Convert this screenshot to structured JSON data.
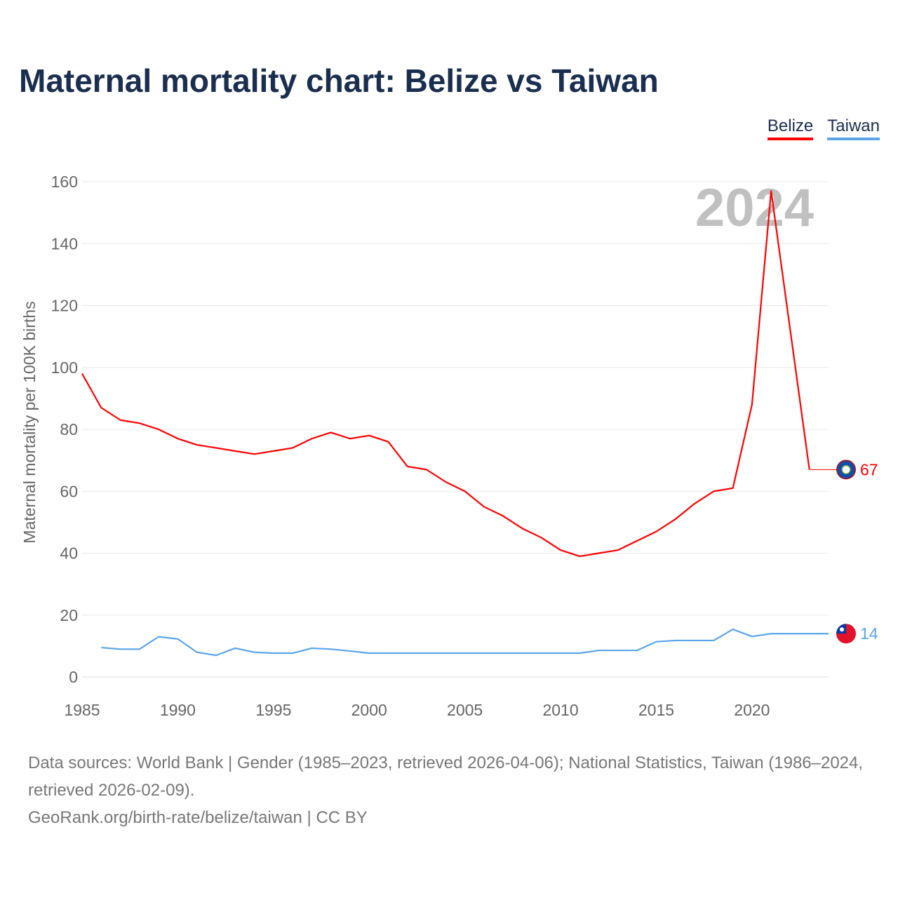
{
  "title": "Maternal mortality chart: Belize vs Taiwan",
  "year_watermark": "2024",
  "sources": {
    "line1": "Data sources: World Bank | Gender (1985–2023, retrieved 2026-04-06); National Statistics, Taiwan (1986–2024, retrieved 2026-02-09).",
    "line2": "GeoRank.org/birth-rate/belize/taiwan | CC BY"
  },
  "chart_data": {
    "type": "line",
    "title": "Maternal mortality chart: Belize vs Taiwan",
    "xlabel": "",
    "ylabel": "Maternal mortality per 100K births",
    "xlim": [
      1985,
      2024
    ],
    "ylim": [
      0,
      160
    ],
    "xticks": [
      1985,
      1990,
      1995,
      2000,
      2005,
      2010,
      2015,
      2020
    ],
    "yticks": [
      0,
      20,
      40,
      60,
      80,
      100,
      120,
      140,
      160
    ],
    "grid": true,
    "legend_position": "top-right",
    "series": [
      {
        "name": "Belize",
        "color": "#ff0000",
        "end_label": "67",
        "flag": "belize-flag",
        "x": [
          1985,
          1986,
          1987,
          1988,
          1989,
          1990,
          1991,
          1992,
          1993,
          1994,
          1995,
          1996,
          1997,
          1998,
          1999,
          2000,
          2001,
          2002,
          2003,
          2004,
          2005,
          2006,
          2007,
          2008,
          2009,
          2010,
          2011,
          2012,
          2013,
          2014,
          2015,
          2016,
          2017,
          2018,
          2019,
          2020,
          2021,
          2022,
          2023
        ],
        "values": [
          98,
          87,
          83,
          82,
          80,
          77,
          75,
          74,
          73,
          72,
          73,
          74,
          77,
          79,
          77,
          78,
          76,
          68,
          67,
          63,
          60,
          55,
          52,
          48,
          45,
          41,
          39,
          40,
          41,
          44,
          47,
          51,
          56,
          60,
          61,
          88,
          157,
          112,
          67
        ]
      },
      {
        "name": "Taiwan",
        "color": "#5aa5ec",
        "end_label": "14",
        "flag": "taiwan-flag",
        "x": [
          1986,
          1987,
          1988,
          1989,
          1990,
          1991,
          1992,
          1993,
          1994,
          1995,
          1996,
          1997,
          1998,
          1999,
          2000,
          2001,
          2002,
          2003,
          2004,
          2005,
          2006,
          2007,
          2008,
          2009,
          2010,
          2011,
          2012,
          2013,
          2014,
          2015,
          2016,
          2017,
          2018,
          2019,
          2020,
          2021,
          2022,
          2023,
          2024
        ],
        "values": [
          9.5,
          9,
          9,
          13,
          12.3,
          8,
          7,
          9.3,
          8,
          7.7,
          7.7,
          9.3,
          9,
          8.4,
          7.7,
          7.7,
          7.7,
          7.7,
          7.7,
          7.7,
          7.7,
          7.7,
          7.7,
          7.7,
          7.7,
          7.7,
          8.6,
          8.6,
          8.6,
          11.4,
          11.8,
          11.8,
          11.8,
          15.4,
          13.1,
          14,
          14,
          14,
          14
        ]
      }
    ]
  }
}
